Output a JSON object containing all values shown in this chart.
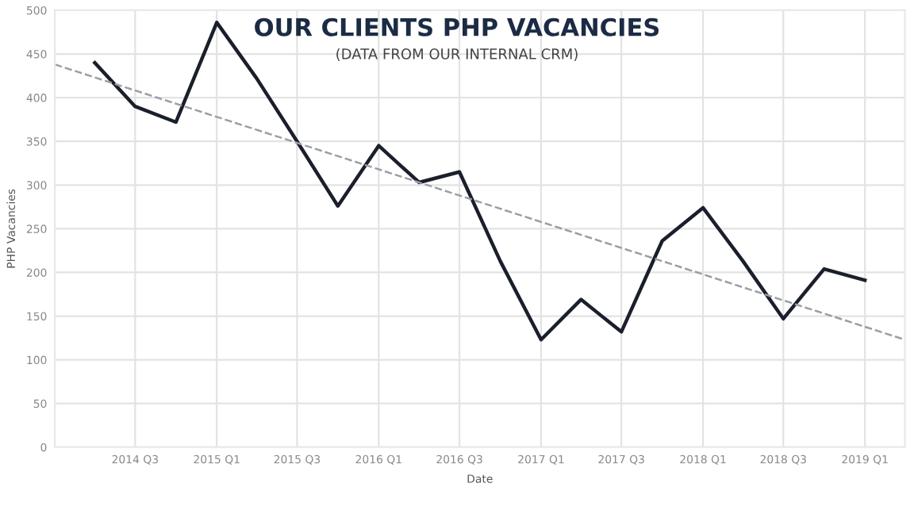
{
  "chart_data": {
    "type": "line",
    "title": "OUR CLIENTS PHP VACANCIES",
    "subtitle": "(DATA FROM OUR INTERNAL CRM)",
    "xlabel": "Date",
    "ylabel": "PHP Vacancies",
    "xlim": [
      "2014-01",
      "2019-04"
    ],
    "xticks": [
      {
        "value": "2014-07",
        "label": "2014 Q3"
      },
      {
        "value": "2015-01",
        "label": "2015 Q1"
      },
      {
        "value": "2015-07",
        "label": "2015 Q3"
      },
      {
        "value": "2016-01",
        "label": "2016 Q1"
      },
      {
        "value": "2016-07",
        "label": "2016 Q3"
      },
      {
        "value": "2017-01",
        "label": "2017 Q1"
      },
      {
        "value": "2017-07",
        "label": "2017 Q3"
      },
      {
        "value": "2018-01",
        "label": "2018 Q1"
      },
      {
        "value": "2018-07",
        "label": "2018 Q3"
      },
      {
        "value": "2019-01",
        "label": "2019 Q1"
      }
    ],
    "ylim": [
      0,
      500
    ],
    "yticks": [
      0,
      50,
      100,
      150,
      200,
      250,
      300,
      350,
      400,
      450,
      500
    ],
    "grid": true,
    "series": [
      {
        "color": "#1a1f2b",
        "line_style": "solid",
        "x": [
          "2014-04",
          "2014-07",
          "2014-10",
          "2015-01",
          "2015-04",
          "2015-07",
          "2015-10",
          "2016-01",
          "2016-04",
          "2016-07",
          "2016-10",
          "2017-01",
          "2017-04",
          "2017-07",
          "2017-10",
          "2018-01",
          "2018-04",
          "2018-07",
          "2018-10",
          "2019-01"
        ],
        "values": [
          440,
          390,
          372,
          486,
          422,
          350,
          276,
          345,
          303,
          315,
          213,
          123,
          169,
          132,
          236,
          274,
          213,
          147,
          204,
          191
        ]
      },
      {
        "color": "#9a9ea6",
        "line_style": "dashed",
        "x": [
          "2014-01",
          "2019-04"
        ],
        "values": [
          438,
          123
        ]
      }
    ]
  }
}
